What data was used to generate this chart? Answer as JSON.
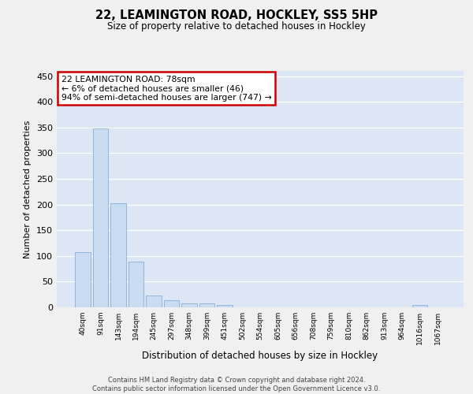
{
  "title": "22, LEAMINGTON ROAD, HOCKLEY, SS5 5HP",
  "subtitle": "Size of property relative to detached houses in Hockley",
  "xlabel": "Distribution of detached houses by size in Hockley",
  "ylabel": "Number of detached properties",
  "bar_color": "#c9ddf2",
  "bar_edge_color": "#89aed4",
  "background_color": "#dce6f5",
  "grid_color": "#ffffff",
  "categories": [
    "40sqm",
    "91sqm",
    "143sqm",
    "194sqm",
    "245sqm",
    "297sqm",
    "348sqm",
    "399sqm",
    "451sqm",
    "502sqm",
    "554sqm",
    "605sqm",
    "656sqm",
    "708sqm",
    "759sqm",
    "810sqm",
    "862sqm",
    "913sqm",
    "964sqm",
    "1016sqm",
    "1067sqm"
  ],
  "values": [
    107,
    348,
    203,
    89,
    23,
    14,
    8,
    7,
    5,
    0,
    0,
    0,
    0,
    0,
    0,
    0,
    0,
    0,
    0,
    4,
    0
  ],
  "annotation_text": "22 LEAMINGTON ROAD: 78sqm\n← 6% of detached houses are smaller (46)\n94% of semi-detached houses are larger (747) →",
  "annotation_box_color": "#ffffff",
  "annotation_box_edge": "#cc0000",
  "ylim": [
    0,
    460
  ],
  "yticks": [
    0,
    50,
    100,
    150,
    200,
    250,
    300,
    350,
    400,
    450
  ],
  "footer_line1": "Contains HM Land Registry data © Crown copyright and database right 2024.",
  "footer_line2": "Contains public sector information licensed under the Open Government Licence v3.0."
}
